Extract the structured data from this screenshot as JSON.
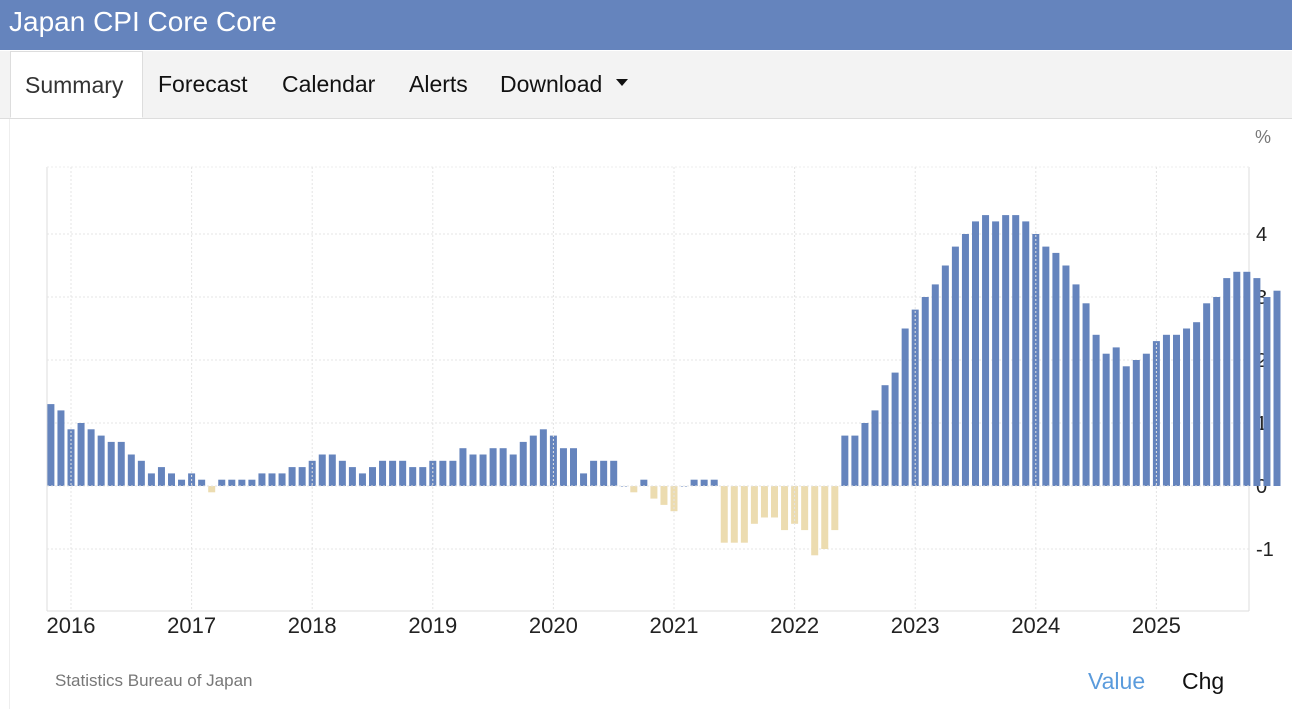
{
  "header": {
    "title": "Japan CPI Core Core"
  },
  "tabs": {
    "summary": "Summary",
    "forecast": "Forecast",
    "calendar": "Calendar",
    "alerts": "Alerts",
    "download": "Download"
  },
  "footer": {
    "source": "Statistics Bureau of Japan",
    "value_label": "Value",
    "chg_label": "Chg"
  },
  "colors": {
    "header_bg": "#6584bd",
    "positive_bar": "#6584bd",
    "negative_bar": "#ecdcb0",
    "active_toggle": "#5a9bdc"
  },
  "chart_data": {
    "type": "bar",
    "title": "",
    "xlabel": "",
    "ylabel": "%",
    "ylim": [
      -2,
      5
    ],
    "yticks": [
      4,
      3,
      2,
      1,
      0,
      -1
    ],
    "ytick_labels": [
      "4",
      "3",
      "2",
      "1",
      "0",
      "-1"
    ],
    "xticks": [
      "2016",
      "2017",
      "2018",
      "2019",
      "2020",
      "2021",
      "2022",
      "2023",
      "2024",
      "2025"
    ],
    "grid": true,
    "start": "2015-11",
    "end": "2025-10",
    "values": [
      1.3,
      1.2,
      0.9,
      1.0,
      0.9,
      0.8,
      0.7,
      0.7,
      0.5,
      0.4,
      0.2,
      0.3,
      0.2,
      0.1,
      0.2,
      0.1,
      -0.1,
      0.1,
      0.1,
      0.1,
      0.1,
      0.2,
      0.2,
      0.2,
      0.3,
      0.3,
      0.4,
      0.5,
      0.5,
      0.4,
      0.3,
      0.2,
      0.3,
      0.4,
      0.4,
      0.4,
      0.3,
      0.3,
      0.4,
      0.4,
      0.4,
      0.6,
      0.5,
      0.5,
      0.6,
      0.6,
      0.5,
      0.7,
      0.8,
      0.9,
      0.8,
      0.6,
      0.6,
      0.2,
      0.4,
      0.4,
      0.4,
      0.0,
      -0.1,
      0.1,
      -0.2,
      -0.3,
      -0.4,
      0.0,
      0.1,
      0.1,
      0.1,
      -0.9,
      -0.9,
      -0.9,
      -0.6,
      -0.5,
      -0.5,
      -0.7,
      -0.6,
      -0.7,
      -1.1,
      -1.0,
      -0.7,
      0.8,
      0.8,
      1.0,
      1.2,
      1.6,
      1.8,
      2.5,
      2.8,
      3.0,
      3.2,
      3.5,
      3.8,
      4.0,
      4.2,
      4.3,
      4.2,
      4.3,
      4.3,
      4.2,
      4.0,
      3.8,
      3.7,
      3.5,
      3.2,
      2.9,
      2.4,
      2.1,
      2.2,
      1.9,
      2.0,
      2.1,
      2.3,
      2.4,
      2.4,
      2.5,
      2.6,
      2.9,
      3.0,
      3.3,
      3.4,
      3.4,
      3.3,
      3.0,
      3.1
    ]
  }
}
